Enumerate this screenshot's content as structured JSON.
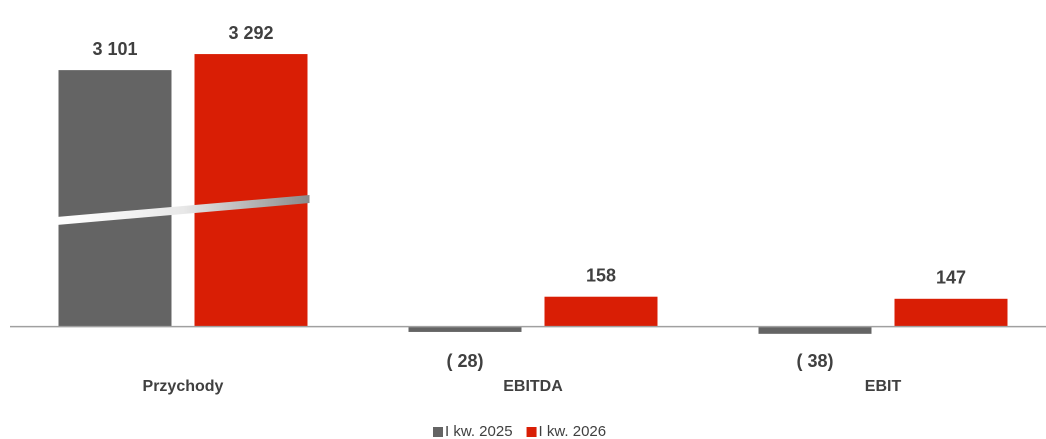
{
  "chart_data": {
    "type": "bar",
    "categories": [
      "Przychody",
      "EBITDA",
      "EBIT"
    ],
    "series": [
      {
        "name": "I kw. 2025",
        "color": "#646464",
        "values": [
          3101,
          -28,
          -38
        ],
        "value_labels": [
          "3 101",
          "( 28)",
          "( 38)"
        ]
      },
      {
        "name": "I kw. 2026",
        "color": "#d91e05",
        "values": [
          3292,
          158,
          147
        ],
        "value_labels": [
          "3 292",
          "158",
          "147"
        ]
      }
    ],
    "ylim": [
      -60,
      3400
    ],
    "ybreak": [
      600,
      1400
    ],
    "legend": "bottom"
  }
}
